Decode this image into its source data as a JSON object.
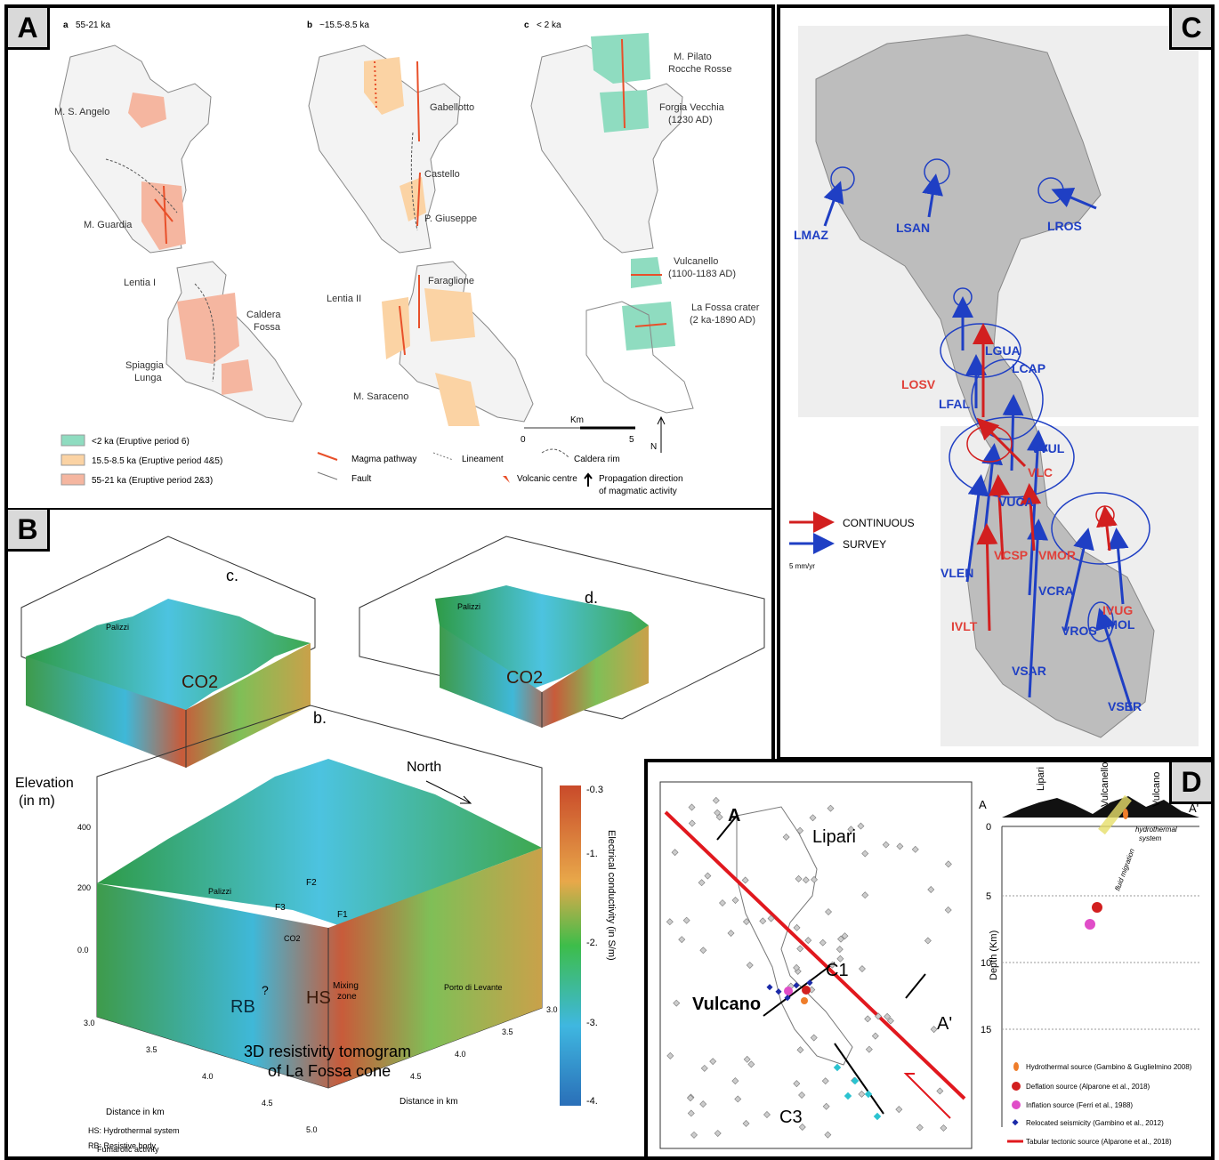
{
  "panelA": {
    "badge": "A",
    "sub_a": "a",
    "period_a": "55-21 ka",
    "sub_b": "b",
    "period_b": "~15.5-8.5 ka",
    "sub_c": "c",
    "period_c": "< 2 ka",
    "labels_a": [
      "M. S. Angelo",
      "M. Guardia",
      "Lentia I",
      "Caldera",
      "Fossa",
      "Spiaggia",
      "Lunga"
    ],
    "labels_b": [
      "Gabellotto",
      "Castello",
      "P. Giuseppe",
      "Faraglione",
      "Lentia II",
      "M. Saraceno"
    ],
    "labels_c": [
      "M. Pilato",
      "Rocche Rosse",
      "Forgia Vecchia",
      "(1230 AD)",
      "Vulcanello",
      "(1100-1183 AD)",
      "La Fossa crater",
      "(2 ka-1890 AD)"
    ],
    "legend": [
      "<2 ka (Eruptive period 6)",
      "15.5-8.5 ka (Eruptive period 4&5)",
      "55-21 ka (Eruptive period 2&3)",
      "Magma pathway",
      "Fault",
      "Lineament",
      "Volcanic centre",
      "Caldera rim",
      "Propagation direction",
      "of magmatic activity"
    ],
    "scale_zero": "0",
    "scale_unit": "Km",
    "scale_five": "5",
    "north": "N",
    "colors": {
      "green": "#8fdcc0",
      "orange": "#fbd3a4",
      "pink": "#f5b6a0"
    }
  },
  "panelB": {
    "badge": "B",
    "c_label": "c.",
    "d_label": "d.",
    "b_label": "b.",
    "elevation": "Elevation",
    "elevation_unit": "(in m)",
    "ticks_elev": [
      "400",
      "200",
      "0.0"
    ],
    "north": "North",
    "inner": [
      "Palizzi",
      "F2",
      "F3",
      "F1",
      "CO2",
      "HS",
      "RB",
      "Mixing",
      "zone",
      "Porto di Levante",
      "?"
    ],
    "title1": "3D resistivity tomogram",
    "title2": "of La Fossa cone",
    "distance": "Distance in km",
    "ticks_x": [
      "3.0",
      "3.5",
      "4.0",
      "4.5",
      "5.0"
    ],
    "cbar_title": "Electrical conductivity (in S/m)",
    "cbar_ticks": [
      "-0.3",
      "-1.",
      "-2.",
      "-3.",
      "-4."
    ],
    "legend": [
      "HS: Hydrothermal system",
      "RB: Resistive body",
      "Fumarolic activity"
    ]
  },
  "panelC": {
    "badge": "C",
    "stations_blue": [
      "LMAZ",
      "LSAN",
      "LROS",
      "LGUA",
      "LFAL",
      "LCAP",
      "VVUL",
      "VLEN",
      "VUCA",
      "VCRA",
      "VROS",
      "VSAR",
      "VSER",
      "VMOL"
    ],
    "stations_red": [
      "LOSV",
      "VCSP",
      "VMOR",
      "IVLT",
      "IVUG",
      "VLC"
    ],
    "legend_cont": "CONTINUOUS",
    "legend_survey": "SURVEY",
    "scale": "5 mm/yr"
  },
  "panelD": {
    "badge": "D",
    "map": {
      "A": "A",
      "A_prime": "A'",
      "lipari": "Lipari",
      "vulcano": "Vulcano",
      "c1": "C1",
      "c3": "C3"
    },
    "section": {
      "A": "A",
      "A_prime": "A'",
      "lipari": "Lipari",
      "vulcanello": "Vulcanello",
      "vulcano": "Vulcano",
      "hydro": "hydrothermal",
      "system": "system",
      "fluid": "fluid migration",
      "depth": "Depth (Km)",
      "ticks": [
        "0",
        "5",
        "10",
        "15"
      ]
    },
    "legend": [
      "Hydrothermal source (Gambino & Guglielmino 2008)",
      "Deflation source (Alparone et al., 2018)",
      "Inflation source (Ferri et al., 1988)",
      "Relocated seismicity (Gambino et al., 2012)",
      "Tabular tectonic source (Alparone et al., 2018)"
    ]
  }
}
